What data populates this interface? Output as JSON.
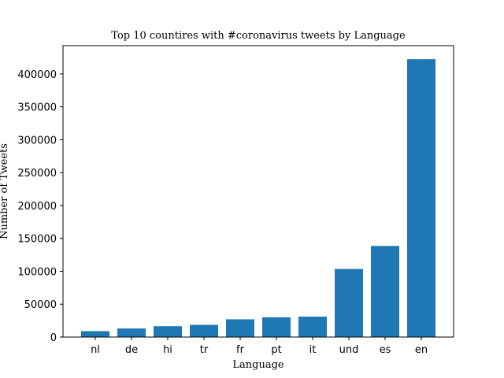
{
  "chart_data": {
    "type": "bar",
    "title": "Top 10 countires with #coronavirus tweets by Language",
    "xlabel": "Language",
    "ylabel": "Number of Tweets",
    "categories": [
      "nl",
      "de",
      "hi",
      "tr",
      "fr",
      "pt",
      "it",
      "und",
      "es",
      "en"
    ],
    "values": [
      9000,
      13000,
      16500,
      18500,
      27000,
      30000,
      31000,
      103500,
      138500,
      422500
    ],
    "ylim": [
      0,
      443000
    ],
    "yticks": [
      0,
      50000,
      100000,
      150000,
      200000,
      250000,
      300000,
      350000,
      400000
    ],
    "bar_color": "#1f77b4",
    "grid": false,
    "legend": "none"
  }
}
